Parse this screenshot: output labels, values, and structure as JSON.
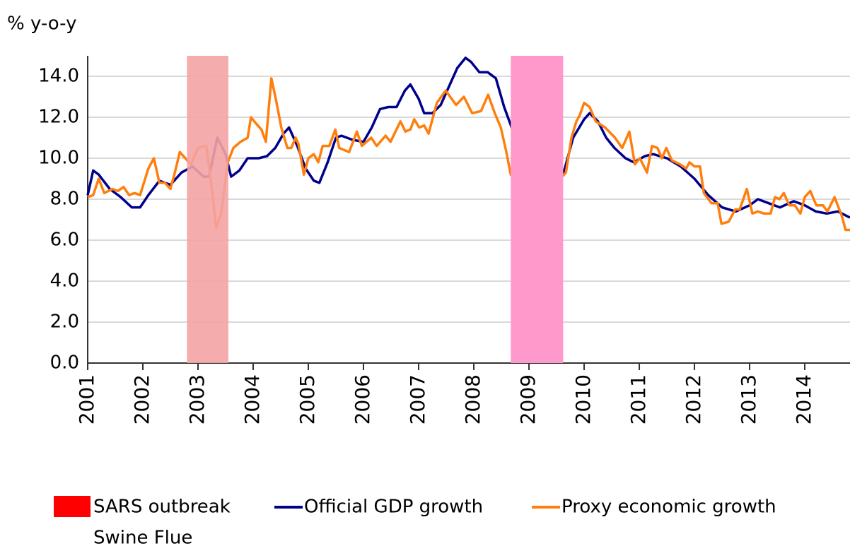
{
  "chart_data": {
    "type": "line",
    "ylabel": "% y-o-y",
    "xlim": [
      2001,
      2014.82
    ],
    "xticks": [
      2001,
      2002,
      2003,
      2004,
      2005,
      2006,
      2007,
      2008,
      2009,
      2010,
      2011,
      2012,
      2013,
      2014
    ],
    "ylim": [
      0,
      15
    ],
    "yticks": [
      {
        "value": 0,
        "label": "0.0"
      },
      {
        "value": 2,
        "label": "2.0"
      },
      {
        "value": 4,
        "label": "4.0"
      },
      {
        "value": 6,
        "label": "6.0"
      },
      {
        "value": 8,
        "label": "8.0"
      },
      {
        "value": 10,
        "label": "10.0"
      },
      {
        "value": 12,
        "label": "12.0"
      },
      {
        "value": 14,
        "label": "14.0"
      }
    ],
    "grid": true,
    "regions": [
      {
        "name": "SARS outbreak",
        "start": 2002.8,
        "end": 2003.55,
        "color": "#f4a3a3",
        "legend_color": "#ff0000"
      },
      {
        "name": "Swine Flue",
        "start": 2008.67,
        "end": 2009.62,
        "color": "#ff99cc"
      }
    ],
    "series": [
      {
        "name": "Official GDP growth",
        "color": "#00008b",
        "x": [
          2001.0,
          2001.1,
          2001.2,
          2001.4,
          2001.6,
          2001.8,
          2001.95,
          2002.1,
          2002.3,
          2002.5,
          2002.7,
          2002.9,
          2003.1,
          2003.2,
          2003.35,
          2003.5,
          2003.6,
          2003.75,
          2003.9,
          2004.1,
          2004.25,
          2004.4,
          2004.55,
          2004.65,
          2004.8,
          2004.95,
          2005.1,
          2005.2,
          2005.35,
          2005.5,
          2005.6,
          2005.8,
          2006.0,
          2006.15,
          2006.3,
          2006.45,
          2006.6,
          2006.75,
          2006.85,
          2007.0,
          2007.1,
          2007.25,
          2007.4,
          2007.55,
          2007.7,
          2007.85,
          2007.95,
          2008.1,
          2008.25,
          2008.4,
          2008.55,
          2008.7,
          2008.85,
          2009.0,
          2009.15,
          2009.3,
          2009.4,
          2009.5,
          2009.65,
          2009.8,
          2010.0,
          2010.1,
          2010.25,
          2010.4,
          2010.55,
          2010.75,
          2010.9,
          2011.1,
          2011.25,
          2011.5,
          2011.75,
          2012.0,
          2012.25,
          2012.5,
          2012.75,
          2013.0,
          2013.15,
          2013.35,
          2013.55,
          2013.8,
          2014.0,
          2014.2,
          2014.4,
          2014.6,
          2014.82
        ],
        "values": [
          8.2,
          9.4,
          9.2,
          8.5,
          8.1,
          7.6,
          7.6,
          8.2,
          8.9,
          8.7,
          9.3,
          9.6,
          9.1,
          9.1,
          11.0,
          10.2,
          9.1,
          9.4,
          10.0,
          10.0,
          10.1,
          10.5,
          11.2,
          11.5,
          10.6,
          9.5,
          8.9,
          8.8,
          9.8,
          11.0,
          11.1,
          10.9,
          10.8,
          11.5,
          12.4,
          12.5,
          12.5,
          13.3,
          13.6,
          12.9,
          12.2,
          12.2,
          12.6,
          13.5,
          14.4,
          14.9,
          14.7,
          14.2,
          14.2,
          13.9,
          12.5,
          11.4,
          11.0,
          10.7,
          10.2,
          9.5,
          8.9,
          8.5,
          9.5,
          11.0,
          11.9,
          12.2,
          11.8,
          11.0,
          10.5,
          10.0,
          9.8,
          10.1,
          10.2,
          10.0,
          9.6,
          9.0,
          8.2,
          7.6,
          7.4,
          7.7,
          8.0,
          7.8,
          7.6,
          7.9,
          7.7,
          7.4,
          7.3,
          7.4,
          7.1
        ]
      },
      {
        "name": "Proxy economic growth",
        "color": "#ff7f0e",
        "x": [
          2001.0,
          2001.1,
          2001.2,
          2001.3,
          2001.45,
          2001.55,
          2001.65,
          2001.75,
          2001.85,
          2001.95,
          2002.1,
          2002.2,
          2002.3,
          2002.4,
          2002.5,
          2002.58,
          2002.67,
          2002.87,
          2003.0,
          2003.15,
          2003.23,
          2003.33,
          2003.42,
          2003.54,
          2003.64,
          2003.77,
          2003.9,
          2003.96,
          2004.05,
          2004.15,
          2004.23,
          2004.33,
          2004.41,
          2004.51,
          2004.62,
          2004.69,
          2004.77,
          2004.82,
          2004.92,
          2005.0,
          2005.1,
          2005.18,
          2005.26,
          2005.38,
          2005.49,
          2005.56,
          2005.74,
          2005.88,
          2005.97,
          2006.14,
          2006.24,
          2006.4,
          2006.49,
          2006.67,
          2006.76,
          2006.85,
          2006.92,
          2007.01,
          2007.1,
          2007.18,
          2007.33,
          2007.49,
          2007.68,
          2007.82,
          2007.97,
          2008.13,
          2008.26,
          2008.38,
          2008.49,
          2008.59,
          2008.67,
          2008.9,
          2009.2,
          2009.5,
          2009.67,
          2009.77,
          2009.86,
          2009.92,
          2010.0,
          2010.1,
          2010.21,
          2010.38,
          2010.56,
          2010.69,
          2010.82,
          2010.92,
          2011.01,
          2011.14,
          2011.23,
          2011.33,
          2011.41,
          2011.49,
          2011.59,
          2011.74,
          2011.85,
          2011.91,
          2012.0,
          2012.1,
          2012.17,
          2012.31,
          2012.42,
          2012.49,
          2012.62,
          2012.74,
          2012.82,
          2012.95,
          2013.05,
          2013.15,
          2013.26,
          2013.38,
          2013.46,
          2013.54,
          2013.62,
          2013.72,
          2013.82,
          2013.92,
          2014.0,
          2014.1,
          2014.21,
          2014.33,
          2014.41,
          2014.54,
          2014.67,
          2014.74,
          2014.82
        ],
        "values": [
          8.1,
          8.2,
          9.0,
          8.3,
          8.5,
          8.4,
          8.6,
          8.2,
          8.3,
          8.2,
          9.5,
          10.0,
          8.8,
          8.8,
          8.5,
          9.3,
          10.3,
          9.7,
          10.5,
          10.6,
          9.0,
          6.6,
          7.3,
          9.8,
          10.5,
          10.8,
          11.0,
          12.0,
          11.7,
          11.4,
          10.8,
          13.9,
          12.9,
          11.5,
          10.5,
          10.5,
          11.0,
          10.7,
          9.2,
          10.0,
          10.2,
          9.8,
          10.6,
          10.6,
          11.4,
          10.5,
          10.3,
          11.3,
          10.6,
          11.0,
          10.6,
          11.1,
          10.8,
          11.8,
          11.3,
          11.4,
          11.9,
          11.5,
          11.6,
          11.2,
          12.7,
          13.3,
          12.6,
          13.0,
          12.2,
          12.3,
          13.1,
          12.2,
          11.5,
          10.3,
          9.2,
          8.5,
          8.0,
          8.8,
          9.3,
          11.0,
          11.8,
          12.1,
          12.7,
          12.5,
          11.8,
          11.5,
          11.0,
          10.5,
          11.3,
          9.7,
          10.0,
          9.3,
          10.6,
          10.5,
          10.0,
          10.5,
          9.9,
          9.7,
          9.5,
          9.8,
          9.6,
          9.6,
          8.3,
          7.8,
          7.8,
          6.8,
          6.9,
          7.5,
          7.5,
          8.5,
          7.3,
          7.4,
          7.3,
          7.3,
          8.1,
          8.0,
          8.3,
          7.7,
          7.7,
          7.3,
          8.1,
          8.4,
          7.7,
          7.7,
          7.4,
          8.1,
          7.2,
          6.5,
          6.5
        ]
      }
    ]
  }
}
